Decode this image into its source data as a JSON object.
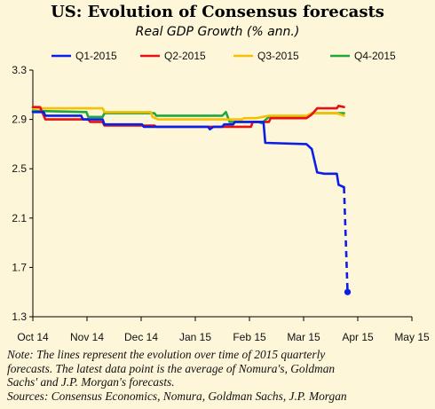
{
  "chart_data": {
    "type": "line",
    "title": "US: Evolution of Consensus  forecasts",
    "subtitle": "Real GDP Growth (% ann.)",
    "xlabel": "",
    "ylabel": "",
    "x_tick_labels": [
      "Oct 14",
      "Nov 14",
      "Dec 14",
      "Jan 15",
      "Feb 15",
      "Mar 15",
      "Apr 15",
      "May 15"
    ],
    "y_ticks": [
      1.3,
      1.7,
      2.1,
      2.5,
      2.9,
      3.3
    ],
    "y_tick_labels": [
      "1.3",
      "1.7",
      "2.1",
      "2.5",
      "2.9",
      "3.3"
    ],
    "ylim": [
      1.3,
      3.3
    ],
    "xlim": [
      "2014-10-01",
      "2015-05-01"
    ],
    "grid": false,
    "legend_position": "top",
    "series": [
      {
        "name": "Q1-2015",
        "color": "#0a1fe8",
        "points": [
          [
            "2014-10-01",
            2.96
          ],
          [
            "2014-10-07",
            2.96
          ],
          [
            "2014-10-08",
            2.93
          ],
          [
            "2014-10-28",
            2.93
          ],
          [
            "2014-10-29",
            2.9
          ],
          [
            "2014-11-09",
            2.9
          ],
          [
            "2014-11-10",
            2.86
          ],
          [
            "2014-12-01",
            2.86
          ],
          [
            "2014-12-02",
            2.84
          ],
          [
            "2015-01-07",
            2.84
          ],
          [
            "2015-01-08",
            2.82
          ],
          [
            "2015-01-10",
            2.84
          ],
          [
            "2015-01-15",
            2.84
          ],
          [
            "2015-01-16",
            2.86
          ],
          [
            "2015-01-21",
            2.86
          ],
          [
            "2015-01-22",
            2.88
          ],
          [
            "2015-02-07",
            2.88
          ],
          [
            "2015-02-08",
            2.71
          ],
          [
            "2015-03-03",
            2.7
          ],
          [
            "2015-03-06",
            2.66
          ],
          [
            "2015-03-09",
            2.47
          ],
          [
            "2015-03-13",
            2.46
          ],
          [
            "2015-03-20",
            2.46
          ],
          [
            "2015-03-21",
            2.37
          ],
          [
            "2015-03-24",
            2.35
          ]
        ],
        "extension": [
          [
            "2015-03-24",
            2.35
          ],
          [
            "2015-03-26",
            1.5
          ]
        ],
        "end_marker": [
          "2015-03-26",
          1.5
        ]
      },
      {
        "name": "Q2-2015",
        "color": "#e81010",
        "points": [
          [
            "2014-10-01",
            3.0
          ],
          [
            "2014-10-05",
            3.0
          ],
          [
            "2014-10-08",
            2.9
          ],
          [
            "2014-11-01",
            2.9
          ],
          [
            "2014-11-02",
            2.88
          ],
          [
            "2014-11-09",
            2.88
          ],
          [
            "2014-11-10",
            2.85
          ],
          [
            "2014-12-08",
            2.85
          ],
          [
            "2014-12-09",
            2.84
          ],
          [
            "2015-01-31",
            2.84
          ],
          [
            "2015-02-01",
            2.88
          ],
          [
            "2015-02-10",
            2.88
          ],
          [
            "2015-02-11",
            2.91
          ],
          [
            "2015-03-03",
            2.91
          ],
          [
            "2015-03-06",
            2.94
          ],
          [
            "2015-03-09",
            2.99
          ],
          [
            "2015-03-20",
            2.99
          ],
          [
            "2015-03-21",
            3.01
          ],
          [
            "2015-03-24",
            3.0
          ]
        ]
      },
      {
        "name": "Q3-2015",
        "color": "#f7c000",
        "points": [
          [
            "2014-10-01",
            2.99
          ],
          [
            "2014-11-09",
            2.99
          ],
          [
            "2014-11-10",
            2.96
          ],
          [
            "2014-12-06",
            2.96
          ],
          [
            "2014-12-07",
            2.92
          ],
          [
            "2014-12-10",
            2.9
          ],
          [
            "2015-01-26",
            2.9
          ],
          [
            "2015-01-27",
            2.91
          ],
          [
            "2015-02-03",
            2.91
          ],
          [
            "2015-02-10",
            2.93
          ],
          [
            "2015-03-03",
            2.93
          ],
          [
            "2015-03-06",
            2.95
          ],
          [
            "2015-03-20",
            2.95
          ],
          [
            "2015-03-24",
            2.93
          ]
        ]
      },
      {
        "name": "Q4-2015",
        "color": "#1ea83c",
        "points": [
          [
            "2014-10-01",
            2.97
          ],
          [
            "2014-10-31",
            2.96
          ],
          [
            "2014-11-01",
            2.92
          ],
          [
            "2014-11-09",
            2.92
          ],
          [
            "2014-11-10",
            2.95
          ],
          [
            "2014-12-08",
            2.95
          ],
          [
            "2014-12-09",
            2.93
          ],
          [
            "2015-01-15",
            2.93
          ],
          [
            "2015-01-17",
            2.96
          ],
          [
            "2015-01-19",
            2.88
          ],
          [
            "2015-02-04",
            2.88
          ],
          [
            "2015-02-06",
            2.87
          ],
          [
            "2015-02-10",
            2.92
          ],
          [
            "2015-03-03",
            2.92
          ],
          [
            "2015-03-06",
            2.95
          ],
          [
            "2015-03-20",
            2.95
          ],
          [
            "2015-03-24",
            2.95
          ]
        ]
      }
    ]
  },
  "note": {
    "line1": "Note: The lines represent the evolution over time of 2015 quarterly",
    "line2": "forecasts. The latest data point is the average of Nomura's, Goldman",
    "line3": "Sachs' and J.P. Morgan's forecasts.",
    "line4": "Sources: Consensus Economics, Nomura, Goldman Sachs, J.P. Morgan"
  }
}
